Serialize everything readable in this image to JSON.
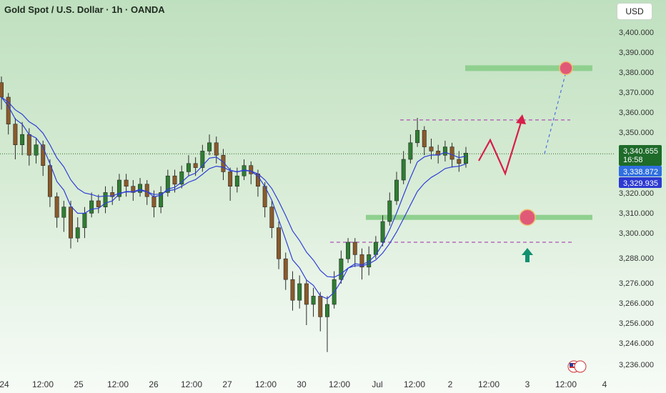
{
  "header": {
    "title": "Gold Spot / U.S. Dollar · 1h · OANDA",
    "currency_button": "USD"
  },
  "colors": {
    "up": "#2e7d32",
    "down": "#8a5a2b",
    "ma": "#2f3fd6",
    "zone": "#8fd08f",
    "target": "#e05a78",
    "arrow_red": "#d81e4a",
    "projection": "#4a6ee0",
    "dashed_level": "#b04fb8",
    "up_arrow": "#119070",
    "price_tag": "#1e6b2a",
    "ma_tag1": "#2f6fe0",
    "ma_tag2": "#2c3ad1"
  },
  "chart_data": {
    "type": "candlestick",
    "symbol": "XAUUSD",
    "timeframe": "1h",
    "y_axis_labels": [
      "3,400.000",
      "3,390.000",
      "3,380.000",
      "3,370.000",
      "3,360.000",
      "3,350.000",
      "3,320.000",
      "3,310.000",
      "3,300.000",
      "3,288.000",
      "3,276.000",
      "3,266.000",
      "3,256.000",
      "3,246.000",
      "3,236.000"
    ],
    "x_axis_labels": [
      "24",
      "12:00",
      "25",
      "12:00",
      "26",
      "12:00",
      "27",
      "12:00",
      "30",
      "12:00",
      "Jul",
      "12:00",
      "2",
      "12:00",
      "3",
      "12:00",
      "4"
    ],
    "price_tags": {
      "last_price": "3,340.655",
      "countdown": "16:58",
      "ma_fast": "3,338.872",
      "ma_slow": "3,329.935"
    },
    "levels": {
      "target_zone": 3382,
      "resistance": 3357,
      "support_zone": 3310,
      "lower_dashed": 3298
    },
    "candles": [
      [
        3375,
        3368,
        3378,
        3362
      ],
      [
        3368,
        3355,
        3370,
        3350
      ],
      [
        3355,
        3345,
        3358,
        3338
      ],
      [
        3345,
        3350,
        3356,
        3340
      ],
      [
        3350,
        3340,
        3353,
        3335
      ],
      [
        3340,
        3345,
        3348,
        3336
      ],
      [
        3345,
        3335,
        3347,
        3330
      ],
      [
        3335,
        3320,
        3338,
        3315
      ],
      [
        3320,
        3310,
        3322,
        3305
      ],
      [
        3310,
        3315,
        3318,
        3303
      ],
      [
        3315,
        3300,
        3318,
        3295
      ],
      [
        3300,
        3305,
        3310,
        3298
      ],
      [
        3305,
        3312,
        3315,
        3300
      ],
      [
        3312,
        3318,
        3322,
        3310
      ],
      [
        3318,
        3315,
        3321,
        3312
      ],
      [
        3315,
        3322,
        3325,
        3312
      ],
      [
        3322,
        3320,
        3325,
        3316
      ],
      [
        3320,
        3328,
        3331,
        3318
      ],
      [
        3328,
        3325,
        3331,
        3320
      ],
      [
        3325,
        3322,
        3328,
        3318
      ],
      [
        3322,
        3326,
        3329,
        3320
      ],
      [
        3326,
        3320,
        3328,
        3316
      ],
      [
        3320,
        3315,
        3323,
        3310
      ],
      [
        3315,
        3322,
        3325,
        3312
      ],
      [
        3322,
        3330,
        3333,
        3320
      ],
      [
        3330,
        3326,
        3333,
        3322
      ],
      [
        3326,
        3332,
        3335,
        3324
      ],
      [
        3332,
        3336,
        3340,
        3330
      ],
      [
        3336,
        3334,
        3339,
        3330
      ],
      [
        3334,
        3342,
        3345,
        3332
      ],
      [
        3342,
        3346,
        3350,
        3340
      ],
      [
        3346,
        3340,
        3349,
        3336
      ],
      [
        3340,
        3332,
        3343,
        3328
      ],
      [
        3332,
        3325,
        3334,
        3318
      ],
      [
        3325,
        3330,
        3334,
        3322
      ],
      [
        3330,
        3335,
        3338,
        3328
      ],
      [
        3335,
        3331,
        3337,
        3326
      ],
      [
        3331,
        3325,
        3333,
        3320
      ],
      [
        3325,
        3315,
        3327,
        3310
      ],
      [
        3315,
        3305,
        3318,
        3300
      ],
      [
        3305,
        3290,
        3308,
        3285
      ],
      [
        3290,
        3280,
        3293,
        3275
      ],
      [
        3280,
        3270,
        3284,
        3265
      ],
      [
        3270,
        3278,
        3282,
        3266
      ],
      [
        3278,
        3268,
        3280,
        3258
      ],
      [
        3268,
        3272,
        3276,
        3262
      ],
      [
        3272,
        3262,
        3274,
        3255
      ],
      [
        3262,
        3268,
        3272,
        3245
      ],
      [
        3268,
        3280,
        3284,
        3266
      ],
      [
        3280,
        3290,
        3294,
        3278
      ],
      [
        3290,
        3298,
        3300,
        3288
      ],
      [
        3298,
        3292,
        3300,
        3286
      ],
      [
        3292,
        3286,
        3295,
        3280
      ],
      [
        3286,
        3292,
        3296,
        3282
      ],
      [
        3292,
        3298,
        3301,
        3290
      ],
      [
        3298,
        3308,
        3311,
        3296
      ],
      [
        3308,
        3318,
        3322,
        3306
      ],
      [
        3318,
        3328,
        3332,
        3316
      ],
      [
        3328,
        3338,
        3342,
        3326
      ],
      [
        3338,
        3346,
        3350,
        3336
      ],
      [
        3346,
        3352,
        3358,
        3344
      ],
      [
        3352,
        3344,
        3354,
        3340
      ],
      [
        3344,
        3342,
        3348,
        3338
      ],
      [
        3342,
        3340,
        3345,
        3336
      ],
      [
        3340,
        3344,
        3347,
        3337
      ],
      [
        3344,
        3338,
        3346,
        3334
      ],
      [
        3338,
        3336,
        3342,
        3332
      ],
      [
        3336,
        3341,
        3344,
        3334
      ]
    ]
  }
}
